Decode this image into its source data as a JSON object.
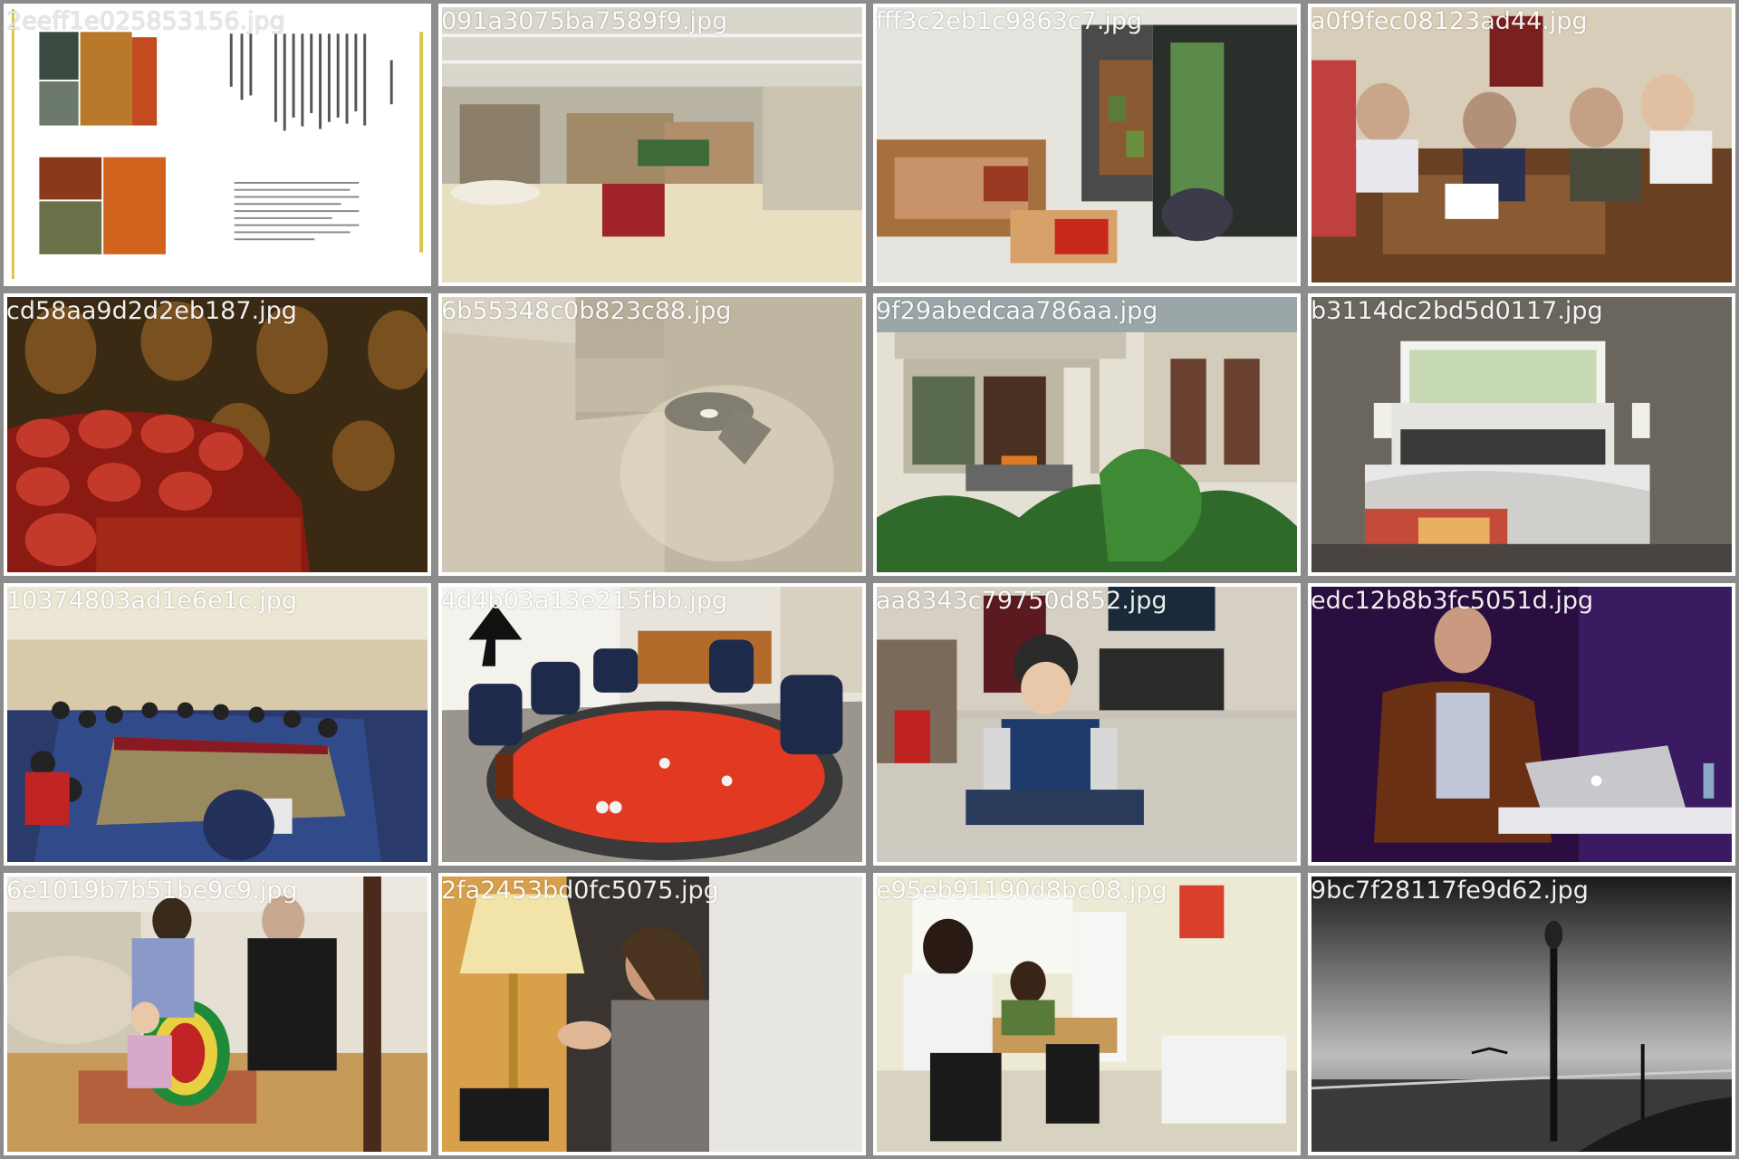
{
  "gallery": {
    "tiles": [
      {
        "filename": "2eeff1e025853156.jpg",
        "scene": "book-spread"
      },
      {
        "filename": "091a3075ba7589f9.jpg",
        "scene": "library"
      },
      {
        "filename": "fff3c2eb1c9863c7.jpg",
        "scene": "cafe-interior"
      },
      {
        "filename": "a0f9fec08123ad44.jpg",
        "scene": "classroom-people"
      },
      {
        "filename": "cd58aa9d2d2eb187.jpg",
        "scene": "leather-sofa"
      },
      {
        "filename": "6b55348c0b823c88.jpg",
        "scene": "concrete-lamp"
      },
      {
        "filename": "9f29abedcaa786aa.jpg",
        "scene": "hotel-courtyard"
      },
      {
        "filename": "b3114dc2bd5d0117.jpg",
        "scene": "bedroom-window"
      },
      {
        "filename": "10374803ad1e6e1c.jpg",
        "scene": "conference-room"
      },
      {
        "filename": "4d4b03a13e215fbb.jpg",
        "scene": "poker-table"
      },
      {
        "filename": "aa8343c79750d852.jpg",
        "scene": "boy-living-room"
      },
      {
        "filename": "edc12b8b3fc5051d.jpg",
        "scene": "speaker-laptop"
      },
      {
        "filename": "6e1019b7b51be9c9.jpg",
        "scene": "child-play-tunnel"
      },
      {
        "filename": "2fa2453bd0fc5075.jpg",
        "scene": "woman-headset"
      },
      {
        "filename": "e95eb91190d8bc08.jpg",
        "scene": "clinic-room"
      },
      {
        "filename": "9bc7f28117fe9d62.jpg",
        "scene": "seaside-lamppost"
      }
    ]
  },
  "colors": {
    "border": "#8c8c8c",
    "label": "#ffffff",
    "background": "#ffffff"
  }
}
